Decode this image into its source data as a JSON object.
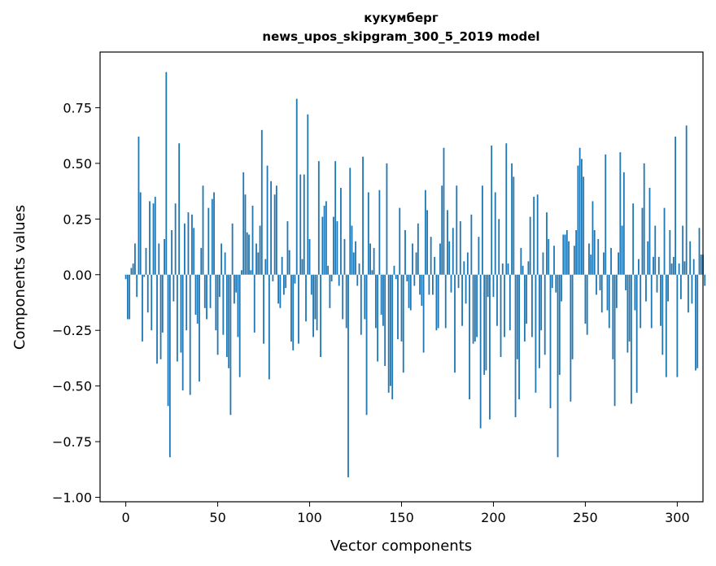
{
  "chart_data": {
    "type": "bar",
    "title_line1": "кукумберг",
    "title_line2": "news_upos_skipgram_300_5_2019 model",
    "xlabel": "Vector components",
    "ylabel": "Components values",
    "xlim": [
      -14,
      314
    ],
    "ylim": [
      -1.02,
      1.0
    ],
    "xticks": [
      0,
      50,
      100,
      150,
      200,
      250,
      300
    ],
    "xtick_labels": [
      "0",
      "50",
      "100",
      "150",
      "200",
      "250",
      "300"
    ],
    "yticks": [
      -1.0,
      -0.75,
      -0.5,
      -0.25,
      0.0,
      0.25,
      0.5,
      0.75
    ],
    "ytick_labels": [
      "−1.00",
      "−0.75",
      "−0.50",
      "−0.25",
      "0.00",
      "0.25",
      "0.50",
      "0.75"
    ],
    "bar_color": "#1f77b4",
    "values": [
      -0.02,
      -0.2,
      -0.2,
      0.03,
      0.05,
      0.14,
      -0.1,
      0.62,
      0.37,
      -0.3,
      -0.01,
      0.12,
      -0.17,
      0.33,
      -0.25,
      0.32,
      0.35,
      -0.4,
      0.14,
      -0.38,
      -0.26,
      0.16,
      0.91,
      -0.59,
      -0.82,
      0.2,
      -0.12,
      0.32,
      -0.39,
      0.59,
      -0.35,
      -0.52,
      0.23,
      -0.25,
      0.28,
      -0.54,
      0.27,
      0.21,
      -0.18,
      -0.22,
      -0.48,
      0.12,
      0.4,
      -0.15,
      -0.2,
      0.3,
      -0.15,
      0.34,
      0.37,
      -0.25,
      -0.36,
      -0.1,
      0.14,
      -0.27,
      0.1,
      -0.37,
      -0.42,
      -0.63,
      0.23,
      -0.13,
      -0.08,
      -0.28,
      -0.46,
      0.02,
      0.46,
      0.36,
      0.19,
      0.18,
      0.02,
      0.31,
      -0.26,
      0.14,
      0.1,
      0.22,
      0.65,
      -0.31,
      0.07,
      0.49,
      -0.47,
      0.42,
      -0.03,
      0.36,
      0.4,
      -0.13,
      -0.15,
      0.08,
      -0.09,
      -0.06,
      0.24,
      0.11,
      -0.3,
      -0.34,
      -0.04,
      0.79,
      -0.31,
      0.45,
      0.07,
      0.45,
      -0.21,
      0.72,
      0.16,
      -0.09,
      -0.28,
      -0.2,
      -0.25,
      0.51,
      -0.37,
      0.26,
      0.31,
      0.33,
      0.04,
      -0.15,
      -0.03,
      0.26,
      0.51,
      0.24,
      -0.05,
      0.39,
      -0.2,
      0.16,
      -0.24,
      -0.91,
      0.48,
      0.22,
      0.1,
      0.15,
      -0.05,
      0.05,
      -0.27,
      0.53,
      -0.2,
      -0.63,
      0.37,
      0.14,
      0.02,
      0.12,
      -0.24,
      -0.39,
      0.38,
      -0.18,
      -0.23,
      -0.41,
      0.5,
      -0.53,
      -0.5,
      -0.56,
      0.04,
      -0.02,
      -0.29,
      0.3,
      -0.3,
      -0.44,
      0.2,
      -0.03,
      -0.15,
      -0.16,
      0.14,
      -0.05,
      0.1,
      0.23,
      -0.09,
      -0.14,
      -0.35,
      0.38,
      0.29,
      -0.09,
      0.17,
      -0.09,
      0.08,
      -0.25,
      -0.24,
      0.14,
      0.4,
      0.57,
      -0.24,
      0.29,
      0.15,
      -0.08,
      0.21,
      -0.44,
      0.4,
      -0.06,
      0.24,
      -0.23,
      0.06,
      -0.13,
      0.1,
      -0.56,
      0.27,
      -0.31,
      -0.3,
      -0.28,
      0.17,
      -0.69,
      0.4,
      -0.45,
      -0.43,
      -0.1,
      -0.65,
      0.58,
      -0.1,
      0.37,
      -0.23,
      0.25,
      -0.37,
      0.05,
      -0.28,
      0.59,
      0.05,
      -0.25,
      0.5,
      0.44,
      -0.64,
      -0.38,
      -0.56,
      0.12,
      0.04,
      -0.3,
      -0.22,
      0.06,
      0.26,
      -0.28,
      0.35,
      -0.53,
      0.36,
      -0.42,
      -0.25,
      0.1,
      -0.36,
      0.28,
      0.16,
      -0.6,
      -0.06,
      0.13,
      -0.08,
      -0.82,
      -0.45,
      -0.12,
      0.18,
      0.18,
      0.2,
      0.15,
      -0.57,
      -0.38,
      0.13,
      0.2,
      0.49,
      0.57,
      0.52,
      0.44,
      -0.22,
      -0.27,
      0.14,
      0.09,
      0.33,
      0.2,
      -0.09,
      0.16,
      -0.07,
      -0.17,
      0.1,
      0.54,
      -0.16,
      -0.24,
      0.12,
      -0.38,
      -0.59,
      -0.15,
      0.1,
      0.55,
      0.22,
      0.46,
      -0.07,
      -0.35,
      -0.3,
      -0.58,
      0.32,
      -0.16,
      -0.53,
      0.07,
      -0.24,
      0.3,
      0.5,
      -0.12,
      0.15,
      0.39,
      -0.24,
      0.08,
      0.22,
      -0.08,
      0.08,
      -0.23,
      -0.36,
      0.3,
      -0.46,
      -0.12,
      0.2,
      0.05,
      0.08,
      0.62,
      -0.46,
      0.05,
      -0.11,
      0.22,
      0.06,
      0.67,
      -0.17,
      0.15,
      -0.13,
      0.07,
      -0.43,
      -0.42,
      0.21,
      0.09,
      0.09,
      -0.05
    ]
  }
}
